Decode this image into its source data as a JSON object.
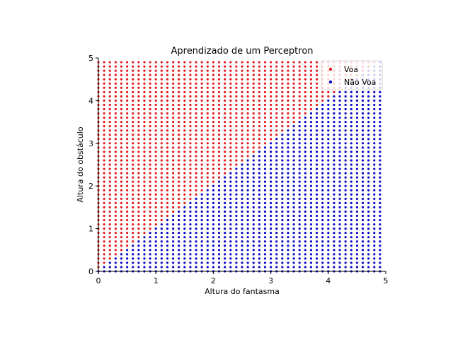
{
  "chart_data": {
    "type": "scatter",
    "title": "Aprendizado de um Perceptron",
    "xlabel": "Altura do fantasma",
    "ylabel": "Altura do obstáculo",
    "xlim": [
      0,
      5
    ],
    "ylim": [
      0,
      5
    ],
    "xticks": [
      "0",
      "1",
      "2",
      "3",
      "4",
      "5"
    ],
    "yticks": [
      "0",
      "1",
      "2",
      "3",
      "4",
      "5"
    ],
    "grid": false,
    "legend_position": "top-right",
    "sampling": {
      "start": 0,
      "stop": 4.9,
      "step": 0.1
    },
    "decision_boundary": {
      "description": "Voa when y > x (slope 1 through origin)"
    },
    "series": [
      {
        "name": "Voa",
        "color": "#e31a1c"
      },
      {
        "name": "Não Voa",
        "color": "#0a0ac8"
      }
    ]
  }
}
